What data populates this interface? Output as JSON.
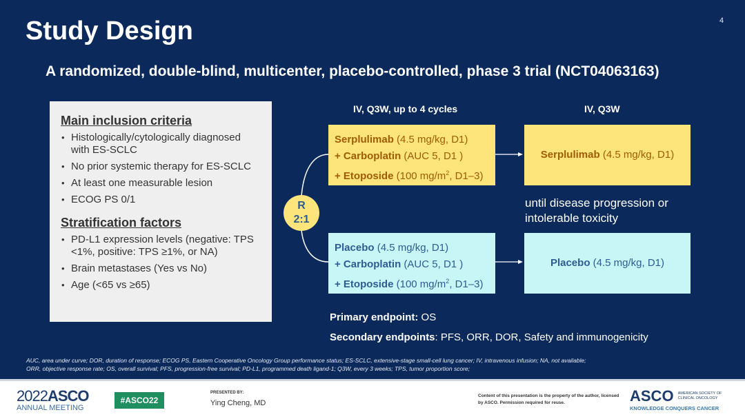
{
  "slide": {
    "title": "Study Design",
    "page_number": "4",
    "subtitle": "A randomized, double-blind, multicenter, placebo-controlled, phase 3 trial (NCT04063163)"
  },
  "panel": {
    "inclusion_title": "Main inclusion criteria",
    "inclusion": [
      "Histologically/cytologically diagnosed with ES-SCLC",
      "No prior systemic therapy for ES-SCLC",
      "At least one measurable lesion",
      "ECOG PS 0/1"
    ],
    "stratification_title": "Stratification factors",
    "stratification": [
      "PD-L1 expression levels (negative: TPS <1%, positive: TPS ≥1%, or NA)",
      "Brain metastases (Yes vs No)",
      "Age (<65 vs ≥65)"
    ]
  },
  "design": {
    "col1": "IV, Q3W, up to 4 cycles",
    "col2": "IV, Q3W",
    "randomization": {
      "r": "R",
      "ratio": "2:1"
    },
    "arm1": {
      "l1b": "Serplulimab",
      "l1": " (4.5 mg/kg, D1)",
      "l2b": "+ Carboplatin",
      "l2": " (AUC 5, D1 )",
      "l3b": "+ Etoposide",
      "l3": " (100 mg/m",
      "sup": "2",
      "l3e": ", D1–3)",
      "maint_b": "Serplulimab",
      "maint": " (4.5 mg/kg, D1)"
    },
    "arm2": {
      "l1b": "Placebo",
      "l1": " (4.5 mg/kg, D1)",
      "l2b": "+ Carboplatin",
      "l2": " (AUC 5, D1 )",
      "l3b": "+ Etoposide",
      "l3": " (100 mg/m",
      "sup": "2",
      "l3e": ", D1–3)",
      "maint_b": "Placebo",
      "maint": " (4.5 mg/kg, D1)"
    },
    "note": "until disease progression or intolerable toxicity",
    "primary_label": "Primary endpoint:",
    "primary": " OS",
    "secondary_label": "Secondary endpoints",
    "secondary": ": PFS, ORR, DOR, Safety and immunogenicity"
  },
  "footnote": {
    "line1": "AUC, area under curve; DOR, duration of response; ECOG PS, Eastern Cooperative Oncology Group performance status; ES-SCLC, extensive-stage small-cell lung cancer; IV, intravenous infusion; NA, not available;",
    "line2": "ORR, objective response rate; OS, overall survival; PFS, progression-free survival; PD-L1, programmed death ligand-1; Q3W, every 3 weeks; TPS, tumor proportion score;"
  },
  "footer": {
    "logo_year": "2022",
    "logo_asco": "ASCO",
    "logo_meeting": "ANNUAL MEETING",
    "hashtag": "#ASCO22",
    "presented_by": "PRESENTED BY:",
    "presenter": "Ying Cheng, MD",
    "copyright": "Content of this presentation is the property of the author, licensed by ASCO. Permission required for reuse.",
    "asco_logo": "ASCO",
    "asco_society": "AMERICAN SOCIETY OF CLINICAL ONCOLOGY",
    "asco_tagline": "KNOWLEDGE CONQUERS CANCER"
  },
  "colors": {
    "background": "#0b2a5b",
    "arm1": "#fde57c",
    "arm2": "#c8f6f6",
    "hashtag": "#1f8f5f"
  }
}
